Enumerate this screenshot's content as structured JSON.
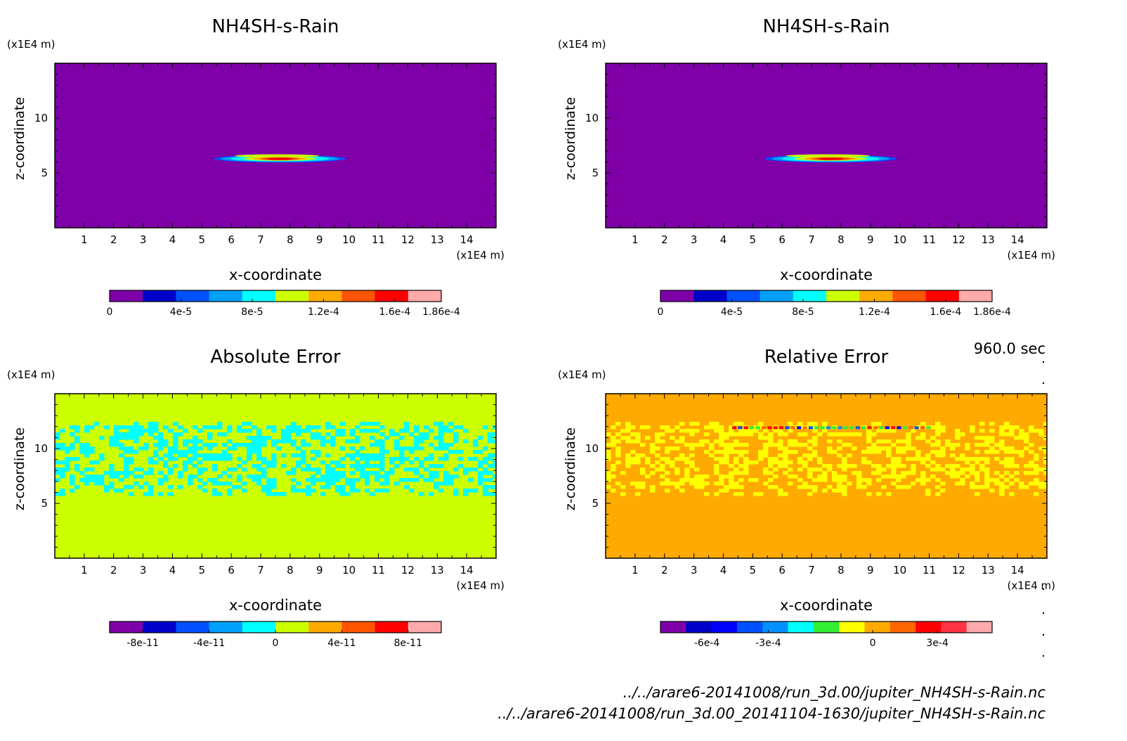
{
  "time_label": "960.0 sec",
  "files": [
    "../../arare6-20141008/run_3d.00/jupiter_NH4SH-s-Rain.nc",
    "../../arare6-20141008/run_3d.00_20141104-1630/jupiter_NH4SH-s-Rain.nc"
  ],
  "chart_data": [
    {
      "type": "heatmap",
      "title": "NH4SH-s-Rain",
      "xlabel": "x-coordinate",
      "ylabel": "z-coordinate",
      "x_unit": "(x1E4 m)",
      "y_unit": "(x1E4 m)",
      "xlim": [
        0,
        15
      ],
      "ylim": [
        0,
        15
      ],
      "x_ticks": [
        "1",
        "2",
        "3",
        "4",
        "5",
        "6",
        "7",
        "8",
        "9",
        "10",
        "11",
        "12",
        "13",
        "14"
      ],
      "y_ticks": [
        "5",
        "10"
      ],
      "field": "plume",
      "levels": [
        "#7f00a8",
        "#0000cd",
        "#0050ff",
        "#00a0ff",
        "#00ffff",
        "#ccff00",
        "#ffaa00",
        "#ff5500",
        "#ff0000",
        "#ffaaaa"
      ],
      "colorbar": {
        "ticks": [
          {
            "label": "0",
            "frac": 0.0
          },
          {
            "label": "4e-5",
            "frac": 0.215
          },
          {
            "label": "8e-5",
            "frac": 0.43
          },
          {
            "label": "1.2e-4",
            "frac": 0.645
          },
          {
            "label": "1.6e-4",
            "frac": 0.86
          },
          {
            "label": "1.86e-4",
            "frac": 1.0
          }
        ]
      }
    },
    {
      "type": "heatmap",
      "title": "NH4SH-s-Rain",
      "xlabel": "x-coordinate",
      "ylabel": "z-coordinate",
      "x_unit": "(x1E4 m)",
      "y_unit": "(x1E4 m)",
      "xlim": [
        0,
        15
      ],
      "ylim": [
        0,
        15
      ],
      "x_ticks": [
        "1",
        "2",
        "3",
        "4",
        "5",
        "6",
        "7",
        "8",
        "9",
        "10",
        "11",
        "12",
        "13",
        "14"
      ],
      "y_ticks": [
        "5",
        "10"
      ],
      "field": "plume",
      "levels": [
        "#7f00a8",
        "#0000cd",
        "#0050ff",
        "#00a0ff",
        "#00ffff",
        "#ccff00",
        "#ffaa00",
        "#ff5500",
        "#ff0000",
        "#ffaaaa"
      ],
      "colorbar": {
        "ticks": [
          {
            "label": "0",
            "frac": 0.0
          },
          {
            "label": "4e-5",
            "frac": 0.215
          },
          {
            "label": "8e-5",
            "frac": 0.43
          },
          {
            "label": "1.2e-4",
            "frac": 0.645
          },
          {
            "label": "1.6e-4",
            "frac": 0.86
          },
          {
            "label": "1.86e-4",
            "frac": 1.0
          }
        ]
      }
    },
    {
      "type": "heatmap",
      "title": "Absolute Error",
      "xlabel": "x-coordinate",
      "ylabel": "z-coordinate",
      "x_unit": "(x1E4 m)",
      "y_unit": "(x1E4 m)",
      "xlim": [
        0,
        15
      ],
      "ylim": [
        0,
        15
      ],
      "x_ticks": [
        "1",
        "2",
        "3",
        "4",
        "5",
        "6",
        "7",
        "8",
        "9",
        "10",
        "11",
        "12",
        "13",
        "14"
      ],
      "y_ticks": [
        "5",
        "10"
      ],
      "field": "abs_noise",
      "levels": [
        "#7f00a8",
        "#0000cd",
        "#0050ff",
        "#00a0ff",
        "#00ffff",
        "#ccff00",
        "#ffaa00",
        "#ff5500",
        "#ff0000",
        "#ffaaaa"
      ],
      "colorbar": {
        "ticks": [
          {
            "label": "-8e-11",
            "frac": 0.1
          },
          {
            "label": "-4e-11",
            "frac": 0.3
          },
          {
            "label": "0",
            "frac": 0.5
          },
          {
            "label": "4e-11",
            "frac": 0.7
          },
          {
            "label": "8e-11",
            "frac": 0.9
          }
        ]
      }
    },
    {
      "type": "heatmap",
      "title": "Relative Error",
      "xlabel": "x-coordinate",
      "ylabel": "z-coordinate",
      "x_unit": "(x1E4 m)",
      "y_unit": "(x1E4 m)",
      "xlim": [
        0,
        15
      ],
      "ylim": [
        0,
        15
      ],
      "x_ticks": [
        "1",
        "2",
        "3",
        "4",
        "5",
        "6",
        "7",
        "8",
        "9",
        "10",
        "11",
        "12",
        "13",
        "14"
      ],
      "y_ticks": [
        "5",
        "10"
      ],
      "field": "rel_noise",
      "levels": [
        "#7f00a8",
        "#0000cd",
        "#0000ff",
        "#0050ff",
        "#0090ff",
        "#00ffff",
        "#33ee33",
        "#ffff00",
        "#ffaa00",
        "#ff6600",
        "#ff0000",
        "#ff3344",
        "#ffaaaa"
      ],
      "colorbar": {
        "ticks": [
          {
            "label": "-6e-4",
            "frac": 0.14
          },
          {
            "label": "-3e-4",
            "frac": 0.325
          },
          {
            "label": "0",
            "frac": 0.64
          },
          {
            "label": "3e-4",
            "frac": 0.835
          }
        ]
      }
    }
  ]
}
